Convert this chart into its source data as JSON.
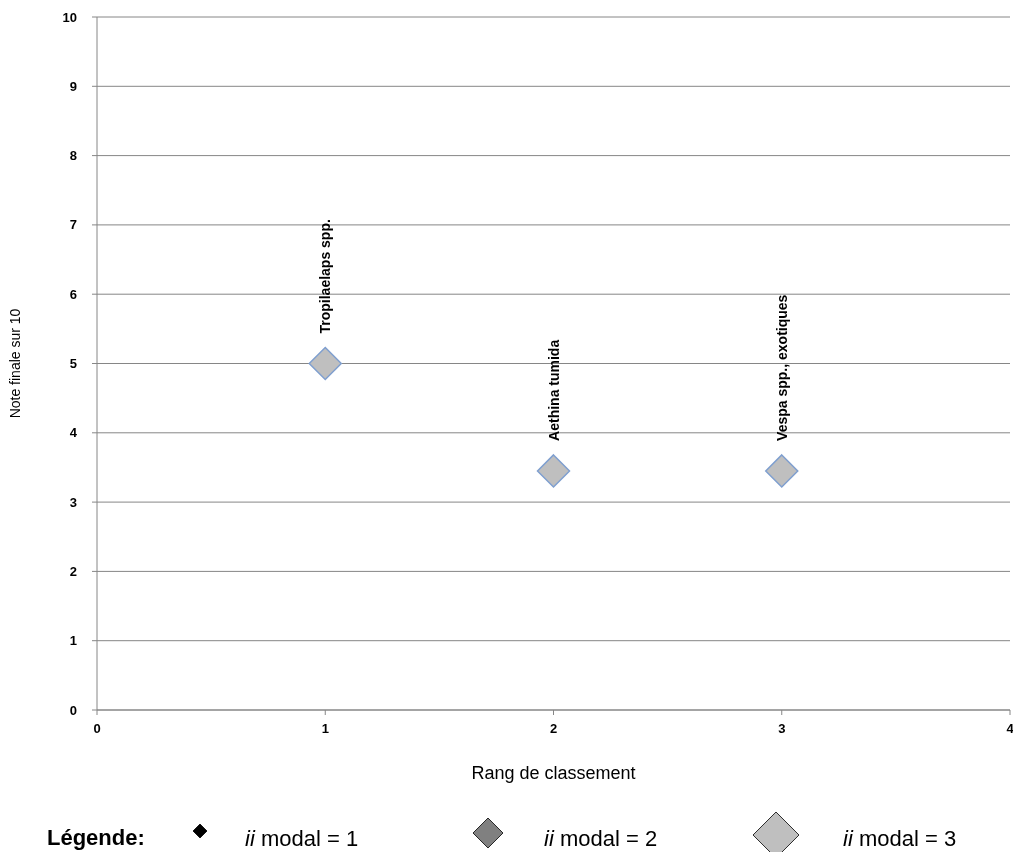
{
  "chart_data": {
    "type": "scatter",
    "xlabel": "Rang de classement",
    "ylabel": "Note finale sur 10",
    "legend_title": "Légende:",
    "x": [
      1,
      2,
      3
    ],
    "series": [
      {
        "name": "ii modal = 1",
        "color": "#000000",
        "values": [
          null,
          null,
          null
        ]
      },
      {
        "name": "ii modal = 2",
        "color": "#808080",
        "values": [
          null,
          null,
          null
        ]
      },
      {
        "name": "ii modal = 3",
        "color": "#bfbfbf",
        "values": [
          5,
          3.45,
          3.45
        ]
      }
    ],
    "annotations": [
      {
        "text": "Tropilaelaps spp.",
        "x": 1,
        "y": 5
      },
      {
        "text": "Aethina tumida",
        "x": 2,
        "y": 3.45
      },
      {
        "text": "Vespa spp., exotiques",
        "x": 3,
        "y": 3.45
      }
    ],
    "xlim": [
      0,
      4
    ],
    "xticks": [
      0,
      1,
      2,
      3,
      4
    ],
    "ylim": [
      0,
      10
    ],
    "yticks": [
      0,
      1,
      2,
      3,
      4,
      5,
      6,
      7,
      8,
      9,
      10
    ],
    "grid": "y",
    "legend": "bottom",
    "marker": "diamond"
  }
}
